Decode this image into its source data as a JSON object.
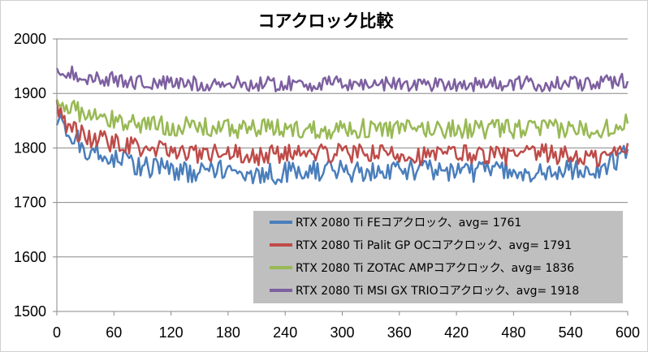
{
  "chart_data": {
    "type": "line",
    "title": "コアクロック比較",
    "xlabel": "",
    "ylabel": "",
    "xlim": [
      0,
      600
    ],
    "ylim": [
      1500,
      2000
    ],
    "xticks": [
      0,
      60,
      120,
      180,
      240,
      300,
      360,
      420,
      480,
      540,
      600
    ],
    "yticks": [
      1500,
      1600,
      1700,
      1800,
      1900,
      2000
    ],
    "grid": "horizontal",
    "legend_position": "bottom-right",
    "series": [
      {
        "name": "RTX 2080 Ti FEコアクロック、avg= 1761",
        "color": "#4a7ebb",
        "points": [
          [
            0,
            1850
          ],
          [
            5,
            1840
          ],
          [
            10,
            1825
          ],
          [
            15,
            1810
          ],
          [
            20,
            1820
          ],
          [
            30,
            1800
          ],
          [
            45,
            1790
          ],
          [
            60,
            1780
          ],
          [
            80,
            1770
          ],
          [
            100,
            1765
          ],
          [
            120,
            1760
          ],
          [
            150,
            1755
          ],
          [
            180,
            1760
          ],
          [
            210,
            1750
          ],
          [
            240,
            1755
          ],
          [
            270,
            1760
          ],
          [
            300,
            1758
          ],
          [
            330,
            1755
          ],
          [
            360,
            1762
          ],
          [
            390,
            1758
          ],
          [
            420,
            1760
          ],
          [
            450,
            1755
          ],
          [
            480,
            1760
          ],
          [
            510,
            1755
          ],
          [
            540,
            1760
          ],
          [
            570,
            1758
          ],
          [
            600,
            1790
          ]
        ]
      },
      {
        "name": "RTX 2080 Ti Palit GP OCコアクロック、avg= 1791",
        "color": "#be4b48",
        "points": [
          [
            0,
            1880
          ],
          [
            5,
            1860
          ],
          [
            10,
            1845
          ],
          [
            20,
            1830
          ],
          [
            30,
            1820
          ],
          [
            60,
            1810
          ],
          [
            90,
            1800
          ],
          [
            120,
            1795
          ],
          [
            150,
            1790
          ],
          [
            180,
            1790
          ],
          [
            210,
            1785
          ],
          [
            240,
            1790
          ],
          [
            270,
            1788
          ],
          [
            300,
            1790
          ],
          [
            330,
            1788
          ],
          [
            360,
            1790
          ],
          [
            390,
            1785
          ],
          [
            420,
            1790
          ],
          [
            450,
            1788
          ],
          [
            480,
            1785
          ],
          [
            510,
            1790
          ],
          [
            540,
            1785
          ],
          [
            570,
            1780
          ],
          [
            600,
            1800
          ]
        ]
      },
      {
        "name": "RTX 2080 Ti ZOTAC AMPコアクロック、avg= 1836",
        "color": "#98b954",
        "points": [
          [
            0,
            1890
          ],
          [
            5,
            1885
          ],
          [
            10,
            1880
          ],
          [
            20,
            1870
          ],
          [
            30,
            1860
          ],
          [
            60,
            1850
          ],
          [
            90,
            1845
          ],
          [
            120,
            1840
          ],
          [
            150,
            1838
          ],
          [
            180,
            1835
          ],
          [
            210,
            1836
          ],
          [
            240,
            1835
          ],
          [
            270,
            1834
          ],
          [
            300,
            1836
          ],
          [
            330,
            1835
          ],
          [
            360,
            1834
          ],
          [
            390,
            1835
          ],
          [
            420,
            1836
          ],
          [
            450,
            1834
          ],
          [
            480,
            1835
          ],
          [
            510,
            1835
          ],
          [
            540,
            1834
          ],
          [
            570,
            1836
          ],
          [
            600,
            1845
          ]
        ]
      },
      {
        "name": "RTX 2080 Ti MSI GX TRIOコアクロック、avg= 1918",
        "color": "#7d60a0",
        "points": [
          [
            0,
            1950
          ],
          [
            5,
            1945
          ],
          [
            10,
            1940
          ],
          [
            20,
            1935
          ],
          [
            30,
            1930
          ],
          [
            60,
            1925
          ],
          [
            90,
            1920
          ],
          [
            120,
            1918
          ],
          [
            150,
            1918
          ],
          [
            180,
            1918
          ],
          [
            210,
            1917
          ],
          [
            240,
            1918
          ],
          [
            270,
            1917
          ],
          [
            300,
            1918
          ],
          [
            330,
            1917
          ],
          [
            360,
            1918
          ],
          [
            390,
            1917
          ],
          [
            420,
            1918
          ],
          [
            450,
            1917
          ],
          [
            480,
            1918
          ],
          [
            510,
            1917
          ],
          [
            540,
            1918
          ],
          [
            570,
            1918
          ],
          [
            600,
            1925
          ]
        ]
      }
    ]
  }
}
